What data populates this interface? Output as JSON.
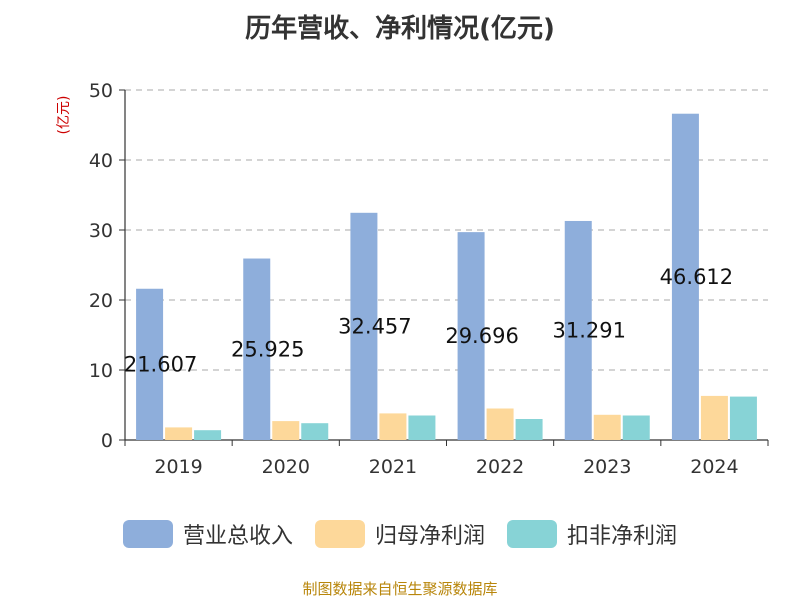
{
  "chart_data": {
    "type": "bar",
    "title": "历年营收、净利情况(亿元)",
    "ylabel": "(亿元)",
    "xlabel": "",
    "categories": [
      "2019",
      "2020",
      "2021",
      "2022",
      "2023",
      "2024"
    ],
    "ylim": [
      0,
      50
    ],
    "yticks": [
      0,
      10,
      20,
      30,
      40,
      50
    ],
    "grid": true,
    "legend_position": "bottom",
    "series": [
      {
        "name": "营业总收入",
        "color": "#8eaedb",
        "values": [
          21.607,
          25.925,
          32.457,
          29.696,
          31.291,
          46.612
        ]
      },
      {
        "name": "归母净利润",
        "color": "#fdd89a",
        "values": [
          1.8,
          2.7,
          3.8,
          4.5,
          3.6,
          6.3
        ]
      },
      {
        "name": "扣非净利润",
        "color": "#87d3d6",
        "values": [
          1.4,
          2.4,
          3.5,
          3.0,
          3.5,
          6.2
        ]
      }
    ],
    "data_labels": [
      "21.607",
      "25.925",
      "32.457",
      "29.696",
      "31.291",
      "46.612"
    ]
  },
  "source_note": "制图数据来自恒生聚源数据库"
}
